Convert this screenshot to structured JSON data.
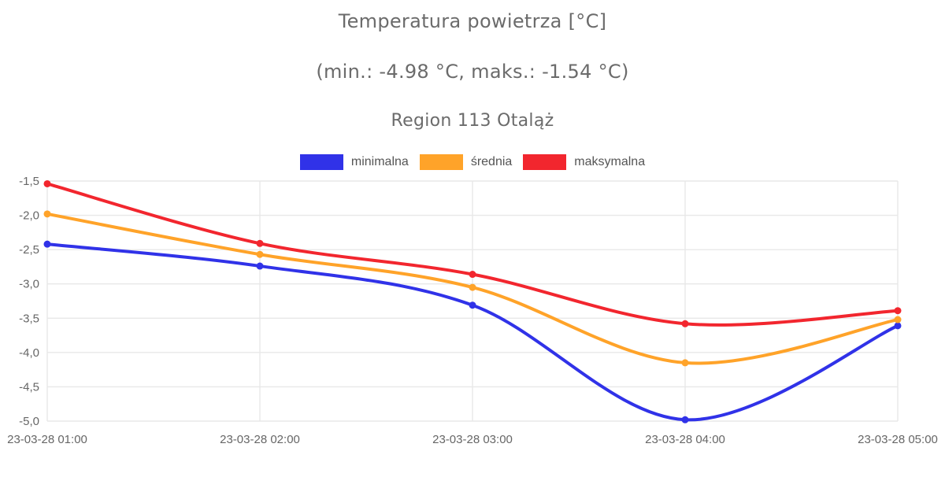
{
  "header": {
    "title": "Temperatura powietrza [°C]",
    "subtitle": "(min.: -4.98 °C, maks.: -1.54 °C)",
    "region": "Region 113 Otaląż"
  },
  "colors": {
    "minimalna": "#3032e8",
    "srednia": "#ffa329",
    "maksymalna": "#f2262e",
    "grid": "#e8e8e8",
    "axis_text": "#666666",
    "title_text": "#6b6b6b"
  },
  "chart_data": {
    "type": "line",
    "title": "Temperatura powietrza [°C]",
    "subtitle": "(min.: -4.98 °C, maks.: -1.54 °C)",
    "region": "Region 113 Otaląż",
    "x_categories": [
      "23-03-28 01:00",
      "23-03-28 02:00",
      "23-03-28 03:00",
      "23-03-28 04:00",
      "23-03-28 05:00"
    ],
    "series": [
      {
        "name": "minimalna",
        "color": "#3032e8",
        "values": [
          -2.42,
          -2.74,
          -3.31,
          -4.98,
          -3.61
        ]
      },
      {
        "name": "średnia",
        "color": "#ffa329",
        "values": [
          -1.98,
          -2.57,
          -3.05,
          -4.15,
          -3.52
        ]
      },
      {
        "name": "maksymalna",
        "color": "#f2262e",
        "values": [
          -1.54,
          -2.41,
          -2.86,
          -3.58,
          -3.39
        ]
      }
    ],
    "y_axis": {
      "min": -5.0,
      "max": -1.5,
      "step": 0.5,
      "tick_labels": [
        "-1,5",
        "-2,0",
        "-2,5",
        "-3,0",
        "-3,5",
        "-4,0",
        "-4,5",
        "-5,0"
      ]
    },
    "xlabel": "",
    "ylabel": "",
    "grid": true,
    "legend_position": "top",
    "marker_radius": 4.5,
    "line_width": 4
  }
}
